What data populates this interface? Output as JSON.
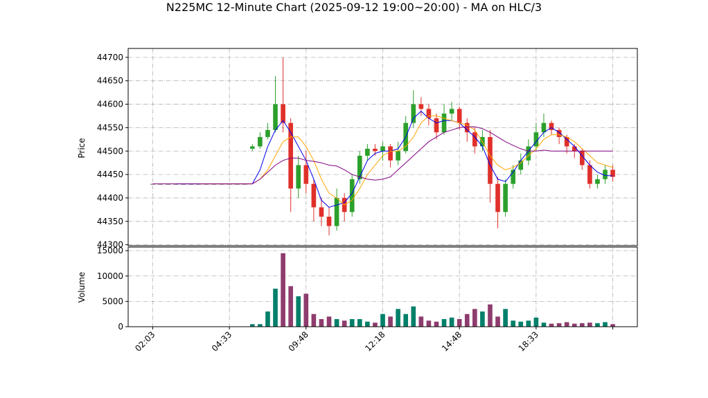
{
  "chart_data": {
    "type": "candlestick",
    "title": "N225MC 12-Minute Chart (2025-09-12 19:00~20:00) - MA on HLC/3",
    "y_label": "Price",
    "y2_label": "Volume",
    "categories": [
      "02:03",
      null,
      null,
      null,
      null,
      null,
      null,
      null,
      null,
      null,
      "04:33",
      null,
      null,
      null,
      null,
      null,
      null,
      null,
      null,
      null,
      "09:48",
      null,
      null,
      null,
      null,
      null,
      null,
      null,
      null,
      null,
      "12:18",
      null,
      null,
      null,
      null,
      null,
      null,
      null,
      null,
      null,
      "14:48",
      null,
      null,
      null,
      null,
      null,
      null,
      null,
      null,
      null,
      "18:33",
      null,
      null,
      null,
      null,
      null,
      null,
      null,
      null,
      null,
      null
    ],
    "xticks": [
      0,
      10,
      20,
      30,
      40,
      50,
      60
    ],
    "xlim": [
      -3.2,
      63.2
    ],
    "open": [
      44430,
      44430,
      44430,
      44430,
      44430,
      44430,
      44430,
      44430,
      44430,
      44430,
      44430,
      44430,
      44430,
      44505,
      44510,
      44530,
      44545,
      44600,
      44560,
      44420,
      44470,
      44430,
      44380,
      44360,
      44340,
      44400,
      44370,
      44440,
      44490,
      44505,
      44500,
      44510,
      44480,
      44500,
      44560,
      44600,
      44590,
      44570,
      44540,
      44580,
      44590,
      44560,
      44540,
      44510,
      44530,
      44430,
      44370,
      44430,
      44460,
      44480,
      44510,
      44540,
      44560,
      44545,
      44530,
      44510,
      44500,
      44470,
      44430,
      44440,
      44460
    ],
    "high": [
      44430,
      44430,
      44430,
      44430,
      44430,
      44430,
      44430,
      44430,
      44430,
      44430,
      44430,
      44430,
      44430,
      44515,
      44540,
      44560,
      44660,
      44700,
      44570,
      44490,
      44500,
      44440,
      44400,
      44380,
      44420,
      44410,
      44450,
      44500,
      44515,
      44515,
      44520,
      44515,
      44520,
      44575,
      44630,
      44615,
      44600,
      44580,
      44600,
      44605,
      44595,
      44570,
      44550,
      44545,
      44545,
      44445,
      44440,
      44470,
      44495,
      44525,
      44560,
      44580,
      44565,
      44550,
      44535,
      44515,
      44505,
      44480,
      44450,
      44470,
      44470
    ],
    "low": [
      44430,
      44430,
      44430,
      44430,
      44430,
      44430,
      44430,
      44430,
      44430,
      44430,
      44430,
      44430,
      44430,
      44500,
      44505,
      44525,
      44540,
      44540,
      44370,
      44400,
      44410,
      44350,
      44340,
      44320,
      44330,
      44350,
      44360,
      44430,
      44480,
      44490,
      44480,
      44465,
      44470,
      44495,
      44550,
      44575,
      44555,
      44525,
      44535,
      44565,
      44545,
      44520,
      44495,
      44500,
      44390,
      44335,
      44360,
      44420,
      44450,
      44470,
      44500,
      44530,
      44535,
      44515,
      44495,
      44485,
      44460,
      44420,
      44420,
      44430,
      44435
    ],
    "close": [
      44430,
      44430,
      44430,
      44430,
      44430,
      44430,
      44430,
      44430,
      44430,
      44430,
      44430,
      44430,
      44430,
      44510,
      44530,
      44545,
      44600,
      44560,
      44420,
      44470,
      44430,
      44380,
      44360,
      44340,
      44400,
      44370,
      44440,
      44490,
      44505,
      44500,
      44510,
      44480,
      44500,
      44560,
      44600,
      44590,
      44570,
      44540,
      44580,
      44590,
      44560,
      44540,
      44510,
      44530,
      44430,
      44370,
      44430,
      44460,
      44480,
      44510,
      44540,
      44560,
      44545,
      44530,
      44510,
      44500,
      44470,
      44430,
      44440,
      44460,
      44445
    ],
    "volume": [
      0,
      0,
      0,
      0,
      0,
      0,
      0,
      0,
      0,
      0,
      0,
      0,
      0,
      500,
      500,
      3000,
      7500,
      14500,
      8000,
      6000,
      6500,
      2500,
      1500,
      2000,
      1500,
      1200,
      1500,
      1500,
      1000,
      800,
      2500,
      2000,
      3500,
      2500,
      4000,
      2000,
      1200,
      1000,
      1500,
      1800,
      1500,
      2500,
      3500,
      3000,
      4400,
      2000,
      3500,
      1200,
      1000,
      1200,
      1800,
      800,
      600,
      700,
      900,
      600,
      700,
      800,
      700,
      900,
      500
    ],
    "up_color": "#2ca02c",
    "down_color": "#e0302a",
    "flat_color": "#555555",
    "volume_up_color": "#00806a",
    "volume_down_color": "#8e3c6e",
    "ma_lines": [
      {
        "color": "#0000ee",
        "values": [
          null,
          null,
          null,
          44430,
          44430,
          44430,
          44430,
          44430,
          44430,
          44430,
          44430,
          44430,
          44430,
          44430,
          44460,
          44510,
          44545,
          44565,
          44540,
          44510,
          44480,
          44440,
          44395,
          44380,
          44385,
          44390,
          44410,
          44445,
          44480,
          44495,
          44500,
          44500,
          44505,
          44530,
          44570,
          44585,
          44570,
          44560,
          44565,
          44565,
          44560,
          44545,
          44530,
          44510,
          44470,
          44440,
          44435,
          44455,
          44480,
          44500,
          44520,
          44540,
          44550,
          44540,
          44525,
          44510,
          44490,
          44470,
          44455,
          44448,
          44447
        ]
      },
      {
        "color": "#ffa500",
        "values": [
          null,
          null,
          null,
          null,
          null,
          null,
          44430,
          44430,
          44430,
          44430,
          44430,
          44430,
          44430,
          44430,
          44440,
          44460,
          44490,
          44520,
          44530,
          44530,
          44510,
          44480,
          44440,
          44410,
          44400,
          44385,
          44395,
          44420,
          44450,
          44470,
          44490,
          44500,
          44500,
          44510,
          44530,
          44560,
          44575,
          44575,
          44570,
          44565,
          44560,
          44555,
          44545,
          44520,
          44490,
          44470,
          44460,
          44465,
          44475,
          44490,
          44505,
          44525,
          44535,
          44535,
          44530,
          44520,
          44505,
          44490,
          44475,
          44470,
          44465
        ]
      },
      {
        "color": "#800080",
        "values": [
          44430,
          44430,
          44430,
          44430,
          44430,
          44430,
          44430,
          44430,
          44430,
          44430,
          44430,
          44430,
          44430,
          44430,
          44440,
          44455,
          44470,
          44480,
          44485,
          44485,
          44480,
          44478,
          44475,
          44470,
          44468,
          44460,
          44450,
          44445,
          44440,
          44438,
          44440,
          44445,
          44460,
          44475,
          44490,
          44505,
          44520,
          44530,
          44540,
          44545,
          44550,
          44552,
          44552,
          44548,
          44540,
          44530,
          44520,
          44512,
          44505,
          44500,
          44500,
          44502,
          44500,
          44500,
          44500,
          44500,
          44500,
          44500,
          44500,
          44500,
          44500
        ]
      }
    ],
    "ylim": [
      44298,
      44719
    ],
    "yticks": [
      44300,
      44350,
      44400,
      44450,
      44500,
      44550,
      44600,
      44650,
      44700
    ],
    "y2lim": [
      0,
      15700
    ],
    "y2ticks": [
      0,
      5000,
      10000,
      15000
    ],
    "grid": true
  }
}
